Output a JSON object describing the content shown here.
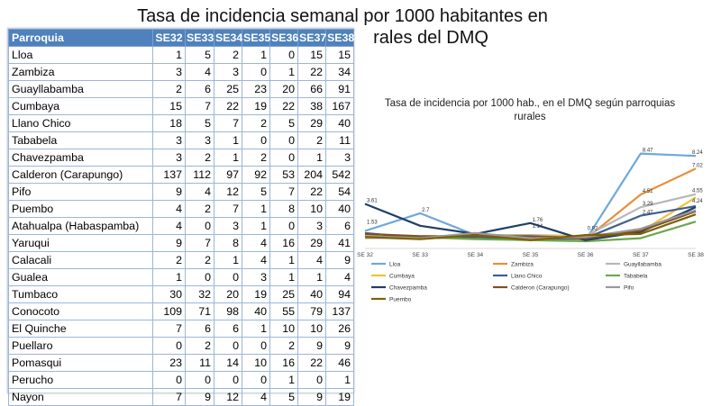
{
  "slide": {
    "title_line1": "Tasa de incidencia semanal por 1000 habitantes en",
    "title_line2": "rales del DMQ"
  },
  "table": {
    "headers": [
      "Parroquia",
      "SE32",
      "SE33",
      "SE34",
      "SE35",
      "SE36",
      "SE37",
      "SE38"
    ],
    "rows": [
      [
        "Lloa",
        "1",
        "5",
        "2",
        "1",
        "0",
        "15",
        "15"
      ],
      [
        "Zambiza",
        "3",
        "4",
        "3",
        "0",
        "1",
        "22",
        "34"
      ],
      [
        "Guayllabamba",
        "2",
        "6",
        "25",
        "23",
        "20",
        "66",
        "91"
      ],
      [
        "Cumbaya",
        "15",
        "7",
        "22",
        "19",
        "22",
        "38",
        "167"
      ],
      [
        "Llano Chico",
        "18",
        "5",
        "7",
        "2",
        "5",
        "29",
        "40"
      ],
      [
        "Tababela",
        "3",
        "3",
        "1",
        "0",
        "0",
        "2",
        "11"
      ],
      [
        "Chavezpamba",
        "3",
        "2",
        "1",
        "2",
        "0",
        "1",
        "3"
      ],
      [
        "Calderon (Carapungo)",
        "137",
        "112",
        "97",
        "92",
        "53",
        "204",
        "542"
      ],
      [
        "Pifo",
        "9",
        "4",
        "12",
        "5",
        "7",
        "22",
        "54"
      ],
      [
        "Puembo",
        "4",
        "2",
        "7",
        "1",
        "8",
        "10",
        "40"
      ],
      [
        "Atahualpa (Habaspamba)",
        "4",
        "0",
        "3",
        "1",
        "0",
        "3",
        "6"
      ],
      [
        "Yaruqui",
        "9",
        "7",
        "8",
        "4",
        "16",
        "29",
        "41"
      ],
      [
        "Calacali",
        "2",
        "2",
        "1",
        "4",
        "1",
        "4",
        "9"
      ],
      [
        "Gualea",
        "1",
        "0",
        "0",
        "3",
        "1",
        "1",
        "4"
      ],
      [
        "Tumbaco",
        "30",
        "32",
        "20",
        "19",
        "25",
        "40",
        "94"
      ],
      [
        "Conocoto",
        "109",
        "71",
        "98",
        "40",
        "55",
        "79",
        "137"
      ],
      [
        "El Quinche",
        "7",
        "6",
        "6",
        "1",
        "10",
        "10",
        "26"
      ],
      [
        "Puellaro",
        "0",
        "2",
        "0",
        "0",
        "2",
        "9",
        "9"
      ],
      [
        "Pomasqui",
        "23",
        "11",
        "14",
        "10",
        "16",
        "22",
        "46"
      ],
      [
        "Perucho",
        "0",
        "0",
        "0",
        "0",
        "1",
        "0",
        "1"
      ],
      [
        "Nayon",
        "7",
        "9",
        "12",
        "4",
        "5",
        "9",
        "19"
      ]
    ]
  },
  "chart_data": {
    "type": "line",
    "title": "Tasa de incidencia por 1000 hab., en el DMQ según parroquias rurales",
    "categories": [
      "SE 32",
      "SE 33",
      "SE 34",
      "SE 35",
      "SE 36",
      "SE 37",
      "SE 38"
    ],
    "ylim": [
      0,
      10
    ],
    "grid": false,
    "legend_position": "bottom",
    "series": [
      {
        "name": "Lloa",
        "color": "#6fa8dc",
        "values": [
          1.0,
          2.7,
          0.6,
          0.4,
          0.1,
          8.47,
          8.24
        ]
      },
      {
        "name": "Zambiza",
        "color": "#e69138",
        "values": [
          0.5,
          0.3,
          0.4,
          0.2,
          0.2,
          4.51,
          7.02
        ]
      },
      {
        "name": "Guayllabamba",
        "color": "#b7b7b7",
        "values": [
          0.3,
          0.4,
          0.6,
          0.6,
          0.5,
          3.29,
          4.55
        ]
      },
      {
        "name": "Cumbaya",
        "color": "#f1c232",
        "values": [
          0.5,
          0.3,
          0.6,
          0.5,
          0.5,
          0.9,
          4.24
        ]
      },
      {
        "name": "Llano Chico",
        "color": "#3d5f8f",
        "values": [
          0.8,
          0.3,
          0.4,
          0.2,
          0.3,
          2.47,
          3.39
        ]
      },
      {
        "name": "Tababela",
        "color": "#6aa84f",
        "values": [
          0.4,
          0.4,
          0.2,
          0.1,
          0.0,
          0.3,
          1.9
        ]
      },
      {
        "name": "Chavezpamba",
        "color": "#1f3f66",
        "values": [
          3.61,
          1.5,
          0.7,
          1.76,
          0.1,
          0.9,
          3.3
        ]
      },
      {
        "name": "Calderon (Carapungo)",
        "color": "#7f4f24",
        "values": [
          0.7,
          0.5,
          0.5,
          0.5,
          0.3,
          1.0,
          2.9
        ]
      },
      {
        "name": "Pifo",
        "color": "#999999",
        "values": [
          0.5,
          0.3,
          0.8,
          0.3,
          0.4,
          1.2,
          3.0
        ]
      },
      {
        "name": "Puembo",
        "color": "#7f6000",
        "values": [
          0.4,
          0.2,
          0.6,
          0.1,
          0.6,
          0.7,
          2.6
        ]
      }
    ],
    "data_labels": [
      "3.61",
      "1.53",
      "2.7",
      "1.76",
      "1.14",
      "0.92",
      "8.47",
      "8.24",
      "7.02",
      "4.51",
      "4.55",
      "4.24",
      "3.29",
      "2.47"
    ]
  }
}
